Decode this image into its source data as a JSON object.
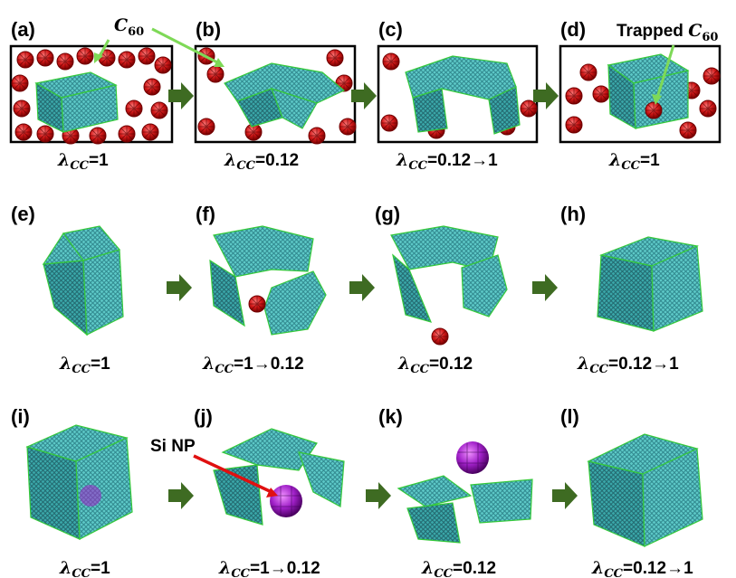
{
  "panels_row1": [
    {
      "label": "(a)",
      "caption_sym": "λ",
      "caption_sub": "CC",
      "caption_val": "=1"
    },
    {
      "label": "(b)",
      "caption_sym": "λ",
      "caption_sub": "CC",
      "caption_val": "=0.12"
    },
    {
      "label": "(c)",
      "caption_sym": "λ",
      "caption_sub": "CC",
      "caption_val": "=0.12→1"
    },
    {
      "label": "(d)",
      "caption_sym": "λ",
      "caption_sub": "CC",
      "caption_val": "=1"
    }
  ],
  "panels_row2": [
    {
      "label": "(e)",
      "caption_sym": "λ",
      "caption_sub": "CC",
      "caption_val": "=1"
    },
    {
      "label": "(f)",
      "caption_sym": "λ",
      "caption_sub": "CC",
      "caption_val": "=1→0.12"
    },
    {
      "label": "(g)",
      "caption_sym": "λ",
      "caption_sub": "CC",
      "caption_val": "=0.12"
    },
    {
      "label": "(h)",
      "caption_sym": "λ",
      "caption_sub": "CC",
      "caption_val": "=0.12→1"
    }
  ],
  "panels_row3": [
    {
      "label": "(i)",
      "caption_sym": "λ",
      "caption_sub": "CC",
      "caption_val": "=1"
    },
    {
      "label": "(j)",
      "caption_sym": "λ",
      "caption_sub": "CC",
      "caption_val": "=1→0.12"
    },
    {
      "label": "(k)",
      "caption_sym": "λ",
      "caption_sub": "CC",
      "caption_val": "=0.12"
    },
    {
      "label": "(l)",
      "caption_sym": "λ",
      "caption_sub": "CC",
      "caption_val": "=0.12→1"
    }
  ],
  "annotations": {
    "c60_sym": "C",
    "c60_sub": "60",
    "trapped_prefix": "Trapped ",
    "trapped_sym": "C",
    "trapped_sub": "60",
    "si_np": "Si NP"
  },
  "colors": {
    "graphene": "#4fbfc0",
    "graphene_dark": "#2a7f86",
    "edge_green": "#35c93a",
    "edge_pink": "#e08a8a",
    "c60_red": "#d01818",
    "si_purple": "#a020c8",
    "arrow_green": "#3e6b22",
    "pointer_green": "#7ed957",
    "pointer_red": "#e01010"
  }
}
